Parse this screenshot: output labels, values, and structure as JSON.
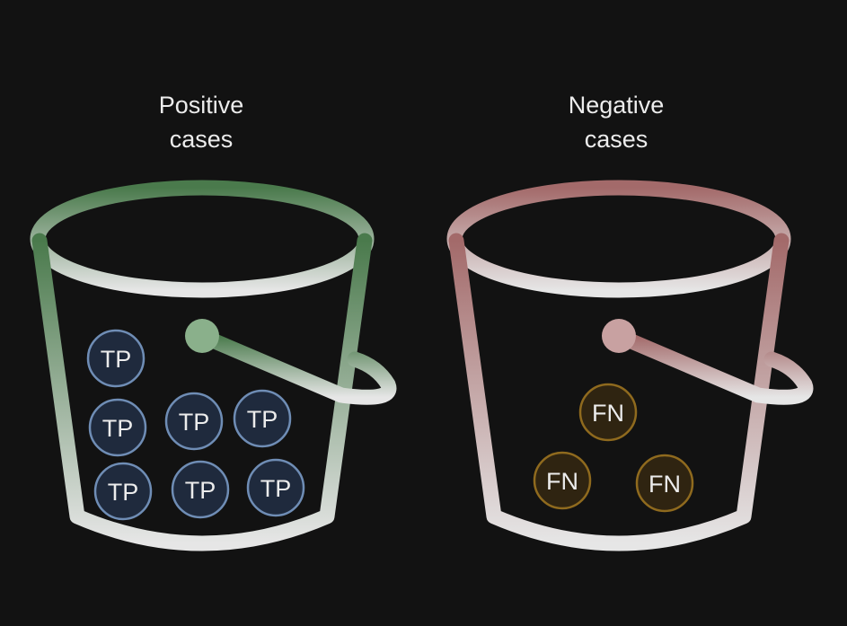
{
  "buckets": [
    {
      "title_line1": "Positive",
      "title_line2": "cases",
      "color_top": "#4a7a4c",
      "color_bottom": "#e6e6e6",
      "ball_fill": "#1f2a3d",
      "ball_stroke": "#6f8db5",
      "items": [
        "TP",
        "TP",
        "TP",
        "TP",
        "TP",
        "TP",
        "TP"
      ]
    },
    {
      "title_line1": "Negative",
      "title_line2": "cases",
      "color_top": "#a36a6a",
      "color_bottom": "#e6e6e6",
      "ball_fill": "#2f2411",
      "ball_stroke": "#8f6a1e",
      "items": [
        "FN",
        "FN",
        "FN"
      ]
    }
  ]
}
